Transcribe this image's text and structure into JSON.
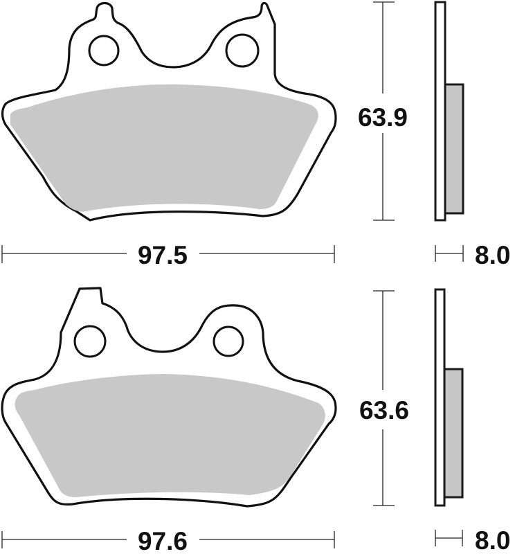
{
  "colors": {
    "lining": "#c8c8c8",
    "outline": "#111111",
    "background": "#ffffff"
  },
  "pads": [
    {
      "width_label": "97.5",
      "height_label": "63.9",
      "thickness_label": "8.0"
    },
    {
      "width_label": "97.6",
      "height_label": "63.6",
      "thickness_label": "8.0"
    }
  ]
}
